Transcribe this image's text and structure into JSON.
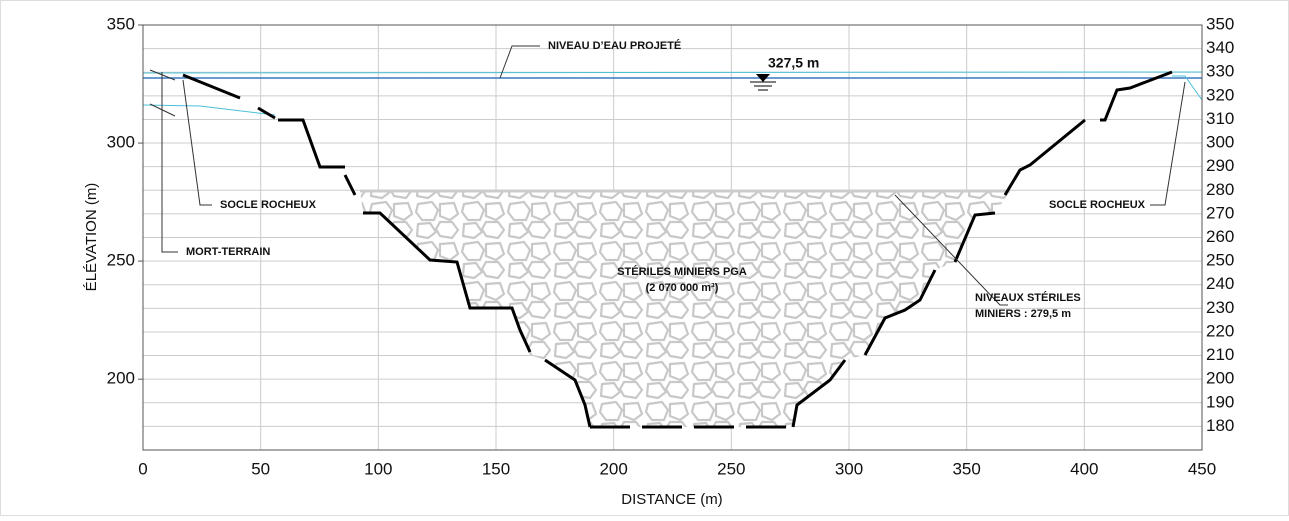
{
  "axes": {
    "xlabel": "DISTANCE (m)",
    "ylabel": "ÉLÉVATION (m)",
    "xlim": [
      0,
      450
    ],
    "ylim": [
      170,
      350
    ],
    "xticks": [
      0,
      50,
      100,
      150,
      200,
      250,
      300,
      350,
      400,
      450
    ],
    "yticks": [
      200,
      250,
      300,
      350
    ],
    "y2ticks": [
      180,
      190,
      200,
      210,
      220,
      230,
      240,
      250,
      260,
      270,
      280,
      290,
      300,
      310,
      320,
      330,
      340,
      350
    ]
  },
  "annotations": {
    "water_level_label": "NIVEAU D’EAU PROJETÉ",
    "water_level": "327,5 m",
    "rock_left": "SOCLE ROCHEUX",
    "rock_right": "SOCLE ROCHEUX",
    "overburden": "MORT-TERRAIN",
    "tailings_title": "STÉRILES MINIERS PGA",
    "tailings_volume": "(2 070 000 m³)",
    "tailings_level_1": "NIVEAUX STÉRILES",
    "tailings_level_2": "MINIERS : 279,5 m"
  }
}
